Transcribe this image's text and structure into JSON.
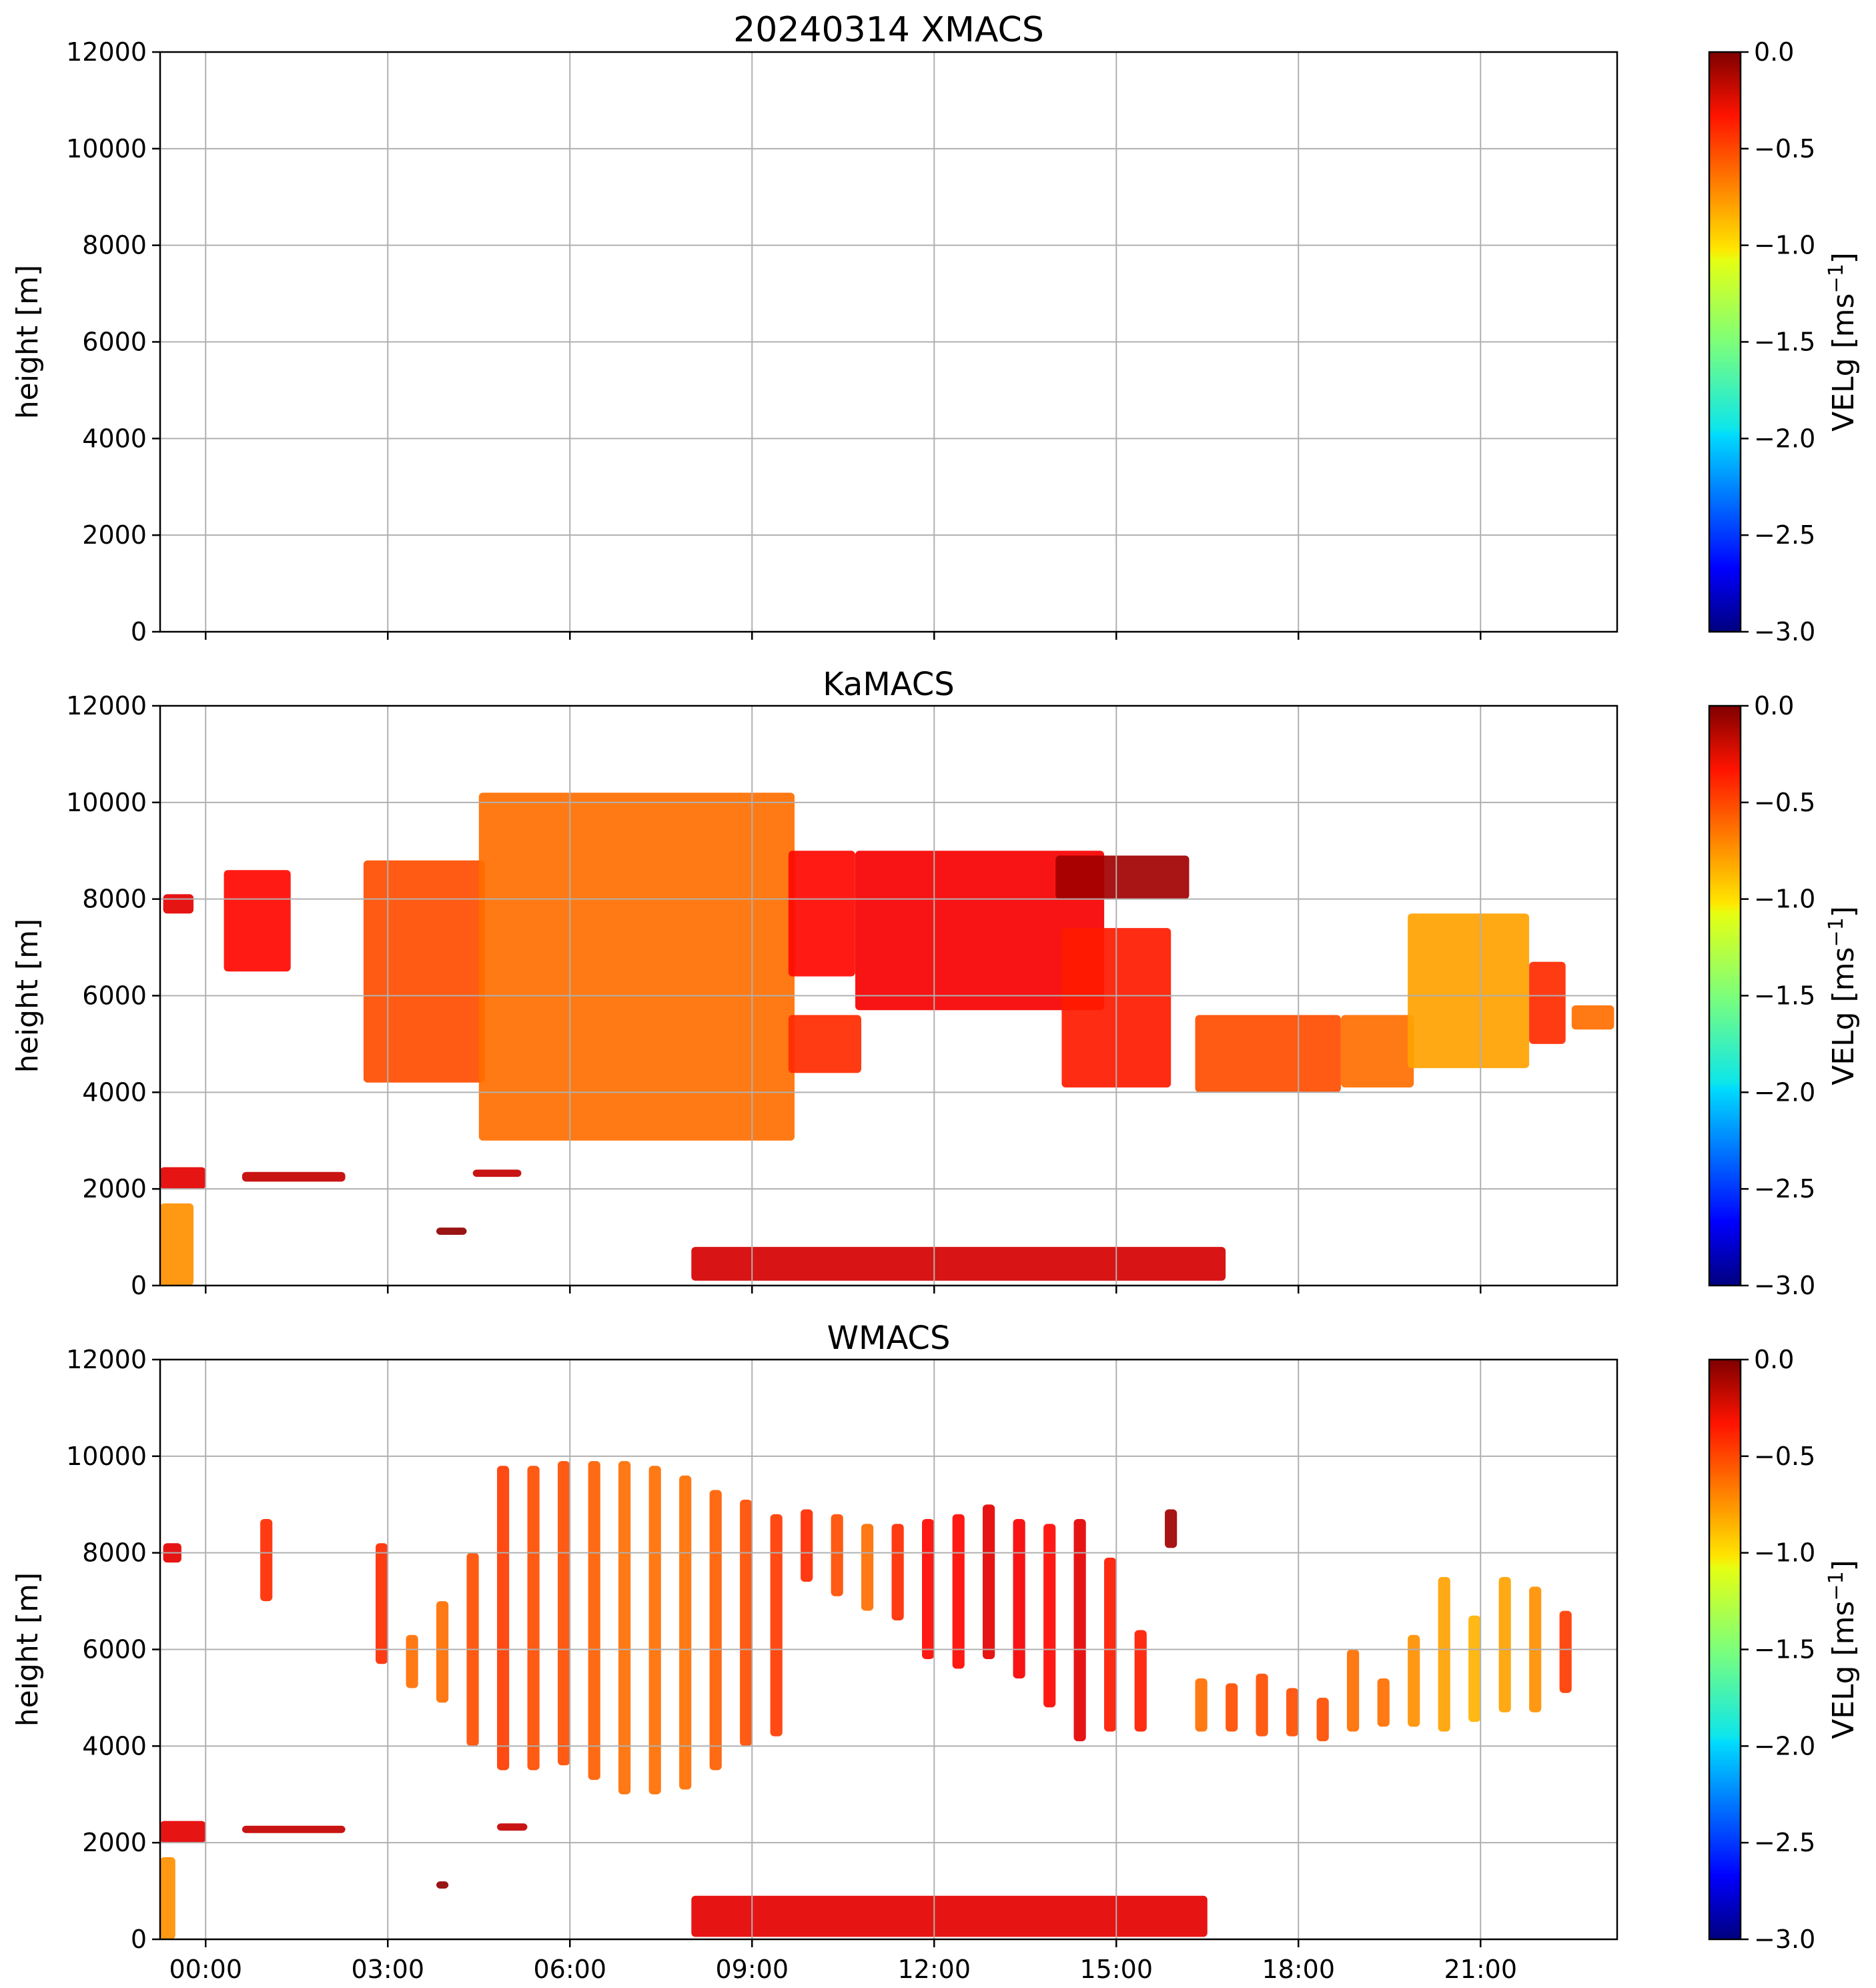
{
  "chart_data": {
    "type": "heatmap",
    "date": "20240314",
    "colorscale": {
      "name": "jet",
      "range": [
        -3.0,
        0.0
      ],
      "ticks": [
        "0.0",
        "−0.5",
        "−1.0",
        "−1.5",
        "−2.0",
        "−2.5",
        "−3.0"
      ],
      "tick_values": [
        0.0,
        -0.5,
        -1.0,
        -1.5,
        -2.0,
        -2.5,
        -3.0
      ],
      "label": "VELg [ms",
      "label_sup": "−1",
      "label_end": "]"
    },
    "xlim_hours": [
      -0.75,
      23.25
    ],
    "x_ticks": [
      "00:00",
      "03:00",
      "06:00",
      "09:00",
      "12:00",
      "15:00",
      "18:00",
      "21:00"
    ],
    "x_tick_hours": [
      0,
      3,
      6,
      9,
      12,
      15,
      18,
      21
    ],
    "ylim": [
      0,
      12000
    ],
    "y_ticks": [
      "12000",
      "10000",
      "8000",
      "6000",
      "4000",
      "2000",
      "0"
    ],
    "y_tick_values": [
      12000,
      10000,
      8000,
      6000,
      4000,
      2000,
      0
    ],
    "ylabel": "height [m]",
    "panels": [
      {
        "title": "20240314 XMACS",
        "blobs": []
      },
      {
        "title": "KaMACS",
        "blobs": [
          {
            "t0": -0.7,
            "t1": -0.2,
            "bottom": 7700,
            "top": 8100,
            "v": -0.3
          },
          {
            "t0": 0.3,
            "t1": 1.4,
            "bottom": 6500,
            "top": 8600,
            "v": -0.4
          },
          {
            "t0": 2.6,
            "t1": 4.6,
            "bottom": 4200,
            "top": 8800,
            "v": -0.6
          },
          {
            "t0": 4.5,
            "t1": 9.7,
            "bottom": 3000,
            "top": 10200,
            "v": -0.7
          },
          {
            "t0": 9.6,
            "t1": 10.8,
            "bottom": 4400,
            "top": 5600,
            "v": -0.5
          },
          {
            "t0": 9.6,
            "t1": 10.7,
            "bottom": 6400,
            "top": 9000,
            "v": -0.4
          },
          {
            "t0": 10.7,
            "t1": 14.8,
            "bottom": 5700,
            "top": 9000,
            "v": -0.35
          },
          {
            "t0": 14.0,
            "t1": 16.2,
            "bottom": 8000,
            "top": 8900,
            "v": -0.1
          },
          {
            "t0": 14.1,
            "t1": 15.9,
            "bottom": 4100,
            "top": 7400,
            "v": -0.45
          },
          {
            "t0": 16.3,
            "t1": 18.7,
            "bottom": 4000,
            "top": 5600,
            "v": -0.6
          },
          {
            "t0": 18.7,
            "t1": 19.9,
            "bottom": 4100,
            "top": 5600,
            "v": -0.7
          },
          {
            "t0": 19.8,
            "t1": 21.8,
            "bottom": 4500,
            "top": 7700,
            "v": -0.85
          },
          {
            "t0": 21.8,
            "t1": 22.4,
            "bottom": 5000,
            "top": 6700,
            "v": -0.5
          },
          {
            "t0": 22.5,
            "t1": 23.2,
            "bottom": 5300,
            "top": 5800,
            "v": -0.7
          },
          {
            "t0": -0.75,
            "t1": 0.0,
            "bottom": 2000,
            "top": 2450,
            "v": -0.3
          },
          {
            "t0": -0.75,
            "t1": -0.2,
            "bottom": 0,
            "top": 1700,
            "v": -0.8
          },
          {
            "t0": 0.6,
            "t1": 2.3,
            "bottom": 2150,
            "top": 2350,
            "v": -0.2
          },
          {
            "t0": 4.4,
            "t1": 5.2,
            "bottom": 2250,
            "top": 2400,
            "v": -0.2
          },
          {
            "t0": 3.8,
            "t1": 4.3,
            "bottom": 1050,
            "top": 1200,
            "v": -0.05
          },
          {
            "t0": 8.0,
            "t1": 16.8,
            "bottom": 100,
            "top": 800,
            "v": -0.25
          }
        ]
      },
      {
        "title": "WMACS",
        "blobs": [
          {
            "t0": -0.7,
            "t1": -0.4,
            "bottom": 7800,
            "top": 8200,
            "v": -0.3
          },
          {
            "t0": 0.9,
            "t1": 1.1,
            "bottom": 7000,
            "top": 8700,
            "v": -0.5
          },
          {
            "t0": 2.8,
            "t1": 3.0,
            "bottom": 5700,
            "top": 8200,
            "v": -0.5
          },
          {
            "t0": 3.3,
            "t1": 3.5,
            "bottom": 5200,
            "top": 6300,
            "v": -0.7
          },
          {
            "t0": 3.8,
            "t1": 4.0,
            "bottom": 4900,
            "top": 7000,
            "v": -0.7
          },
          {
            "t0": 4.3,
            "t1": 4.5,
            "bottom": 4000,
            "top": 8000,
            "v": -0.6
          },
          {
            "t0": 4.8,
            "t1": 5.0,
            "bottom": 3500,
            "top": 9800,
            "v": -0.55
          },
          {
            "t0": 5.3,
            "t1": 5.5,
            "bottom": 3500,
            "top": 9800,
            "v": -0.6
          },
          {
            "t0": 5.8,
            "t1": 6.0,
            "bottom": 3600,
            "top": 9900,
            "v": -0.6
          },
          {
            "t0": 6.3,
            "t1": 6.5,
            "bottom": 3300,
            "top": 9900,
            "v": -0.65
          },
          {
            "t0": 6.8,
            "t1": 7.0,
            "bottom": 3000,
            "top": 9900,
            "v": -0.7
          },
          {
            "t0": 7.3,
            "t1": 7.5,
            "bottom": 3000,
            "top": 9800,
            "v": -0.7
          },
          {
            "t0": 7.8,
            "t1": 8.0,
            "bottom": 3100,
            "top": 9600,
            "v": -0.7
          },
          {
            "t0": 8.3,
            "t1": 8.5,
            "bottom": 3500,
            "top": 9300,
            "v": -0.65
          },
          {
            "t0": 8.8,
            "t1": 9.0,
            "bottom": 4000,
            "top": 9100,
            "v": -0.6
          },
          {
            "t0": 9.3,
            "t1": 9.5,
            "bottom": 4200,
            "top": 8800,
            "v": -0.55
          },
          {
            "t0": 9.8,
            "t1": 10.0,
            "bottom": 7400,
            "top": 8900,
            "v": -0.5
          },
          {
            "t0": 10.3,
            "t1": 10.5,
            "bottom": 7100,
            "top": 8800,
            "v": -0.6
          },
          {
            "t0": 10.8,
            "t1": 11.0,
            "bottom": 6800,
            "top": 8600,
            "v": -0.7
          },
          {
            "t0": 11.3,
            "t1": 11.5,
            "bottom": 6600,
            "top": 8600,
            "v": -0.5
          },
          {
            "t0": 11.8,
            "t1": 12.0,
            "bottom": 5800,
            "top": 8700,
            "v": -0.4
          },
          {
            "t0": 12.3,
            "t1": 12.5,
            "bottom": 5600,
            "top": 8800,
            "v": -0.4
          },
          {
            "t0": 12.8,
            "t1": 13.0,
            "bottom": 5800,
            "top": 9000,
            "v": -0.3
          },
          {
            "t0": 13.3,
            "t1": 13.5,
            "bottom": 5400,
            "top": 8700,
            "v": -0.35
          },
          {
            "t0": 13.8,
            "t1": 14.0,
            "bottom": 4800,
            "top": 8600,
            "v": -0.4
          },
          {
            "t0": 14.3,
            "t1": 14.5,
            "bottom": 4100,
            "top": 8700,
            "v": -0.3
          },
          {
            "t0": 14.8,
            "t1": 15.0,
            "bottom": 4300,
            "top": 7900,
            "v": -0.45
          },
          {
            "t0": 15.3,
            "t1": 15.5,
            "bottom": 4300,
            "top": 6400,
            "v": -0.45
          },
          {
            "t0": 15.8,
            "t1": 16.0,
            "bottom": 8100,
            "top": 8900,
            "v": -0.1
          },
          {
            "t0": 16.3,
            "t1": 16.5,
            "bottom": 4300,
            "top": 5400,
            "v": -0.7
          },
          {
            "t0": 16.8,
            "t1": 17.0,
            "bottom": 4300,
            "top": 5300,
            "v": -0.6
          },
          {
            "t0": 17.3,
            "t1": 17.5,
            "bottom": 4200,
            "top": 5500,
            "v": -0.6
          },
          {
            "t0": 17.8,
            "t1": 18.0,
            "bottom": 4200,
            "top": 5200,
            "v": -0.6
          },
          {
            "t0": 18.3,
            "t1": 18.5,
            "bottom": 4100,
            "top": 5000,
            "v": -0.6
          },
          {
            "t0": 18.8,
            "t1": 19.0,
            "bottom": 4300,
            "top": 6000,
            "v": -0.7
          },
          {
            "t0": 19.3,
            "t1": 19.5,
            "bottom": 4400,
            "top": 5400,
            "v": -0.7
          },
          {
            "t0": 19.8,
            "t1": 20.0,
            "bottom": 4400,
            "top": 6300,
            "v": -0.8
          },
          {
            "t0": 20.3,
            "t1": 20.5,
            "bottom": 4300,
            "top": 7500,
            "v": -0.85
          },
          {
            "t0": 20.8,
            "t1": 21.0,
            "bottom": 4500,
            "top": 6700,
            "v": -0.9
          },
          {
            "t0": 21.3,
            "t1": 21.5,
            "bottom": 4700,
            "top": 7500,
            "v": -0.85
          },
          {
            "t0": 21.8,
            "t1": 22.0,
            "bottom": 4700,
            "top": 7300,
            "v": -0.8
          },
          {
            "t0": 22.3,
            "t1": 22.5,
            "bottom": 5100,
            "top": 6800,
            "v": -0.55
          },
          {
            "t0": -0.75,
            "t1": 0.0,
            "bottom": 2000,
            "top": 2450,
            "v": -0.3
          },
          {
            "t0": -0.75,
            "t1": -0.5,
            "bottom": 0,
            "top": 1700,
            "v": -0.8
          },
          {
            "t0": 0.6,
            "t1": 2.3,
            "bottom": 2200,
            "top": 2350,
            "v": -0.2
          },
          {
            "t0": 4.8,
            "t1": 5.3,
            "bottom": 2250,
            "top": 2400,
            "v": -0.2
          },
          {
            "t0": 3.8,
            "t1": 4.0,
            "bottom": 1050,
            "top": 1200,
            "v": -0.05
          },
          {
            "t0": 8.0,
            "t1": 16.5,
            "bottom": 50,
            "top": 900,
            "v": -0.3
          }
        ]
      }
    ]
  }
}
